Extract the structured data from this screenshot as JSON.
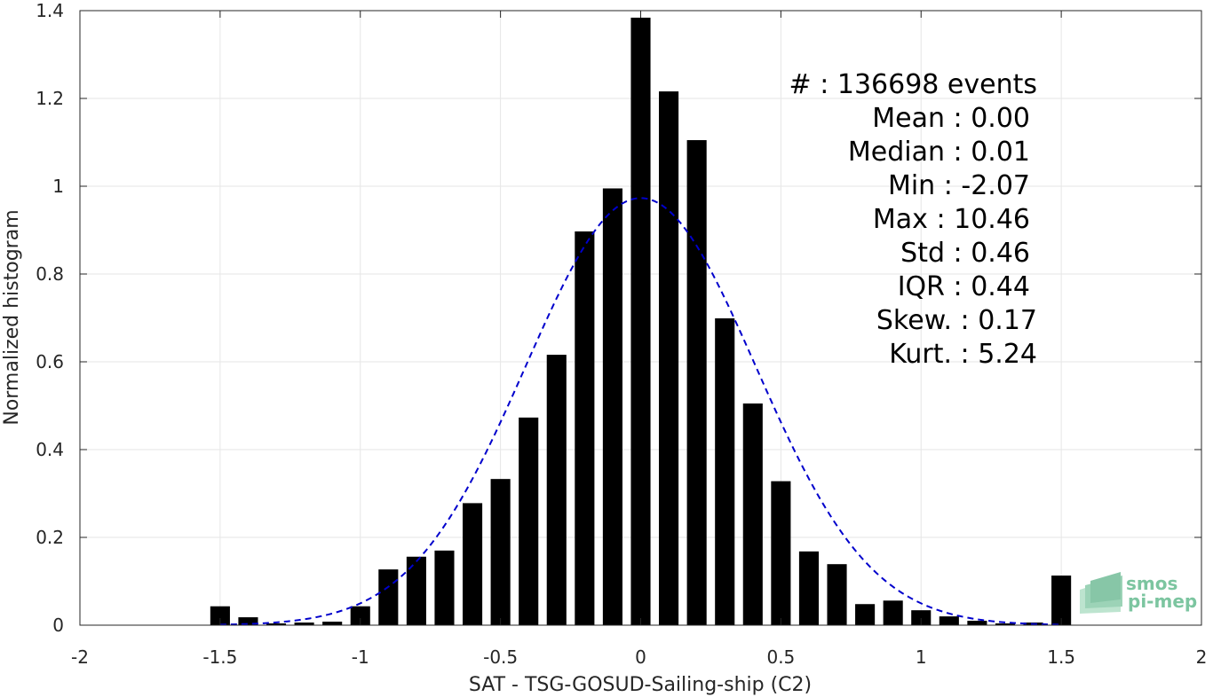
{
  "chart_data": {
    "type": "bar",
    "xlabel": "SAT - TSG-GOSUD-Sailing-ship (C2)",
    "ylabel": "Normalized histogram",
    "xlim": [
      -2,
      2
    ],
    "ylim": [
      0,
      1.4
    ],
    "grid": true,
    "bar_width": 0.07,
    "bar_color": "#000000",
    "x_ticks": [
      -2,
      -1.5,
      -1,
      -0.5,
      0,
      0.5,
      1,
      1.5,
      2
    ],
    "x_tick_labels": [
      "-2",
      "-1.5",
      "-1",
      "-0.5",
      "0",
      "0.5",
      "1",
      "1.5",
      "2"
    ],
    "y_ticks": [
      0,
      0.2,
      0.4,
      0.6,
      0.8,
      1,
      1.2,
      1.4
    ],
    "y_tick_labels": [
      "0",
      "0.2",
      "0.4",
      "0.6",
      "0.8",
      "1",
      "1.2",
      "1.4"
    ],
    "bars": {
      "x": [
        -1.5,
        -1.4,
        -1.3,
        -1.2,
        -1.1,
        -1.0,
        -0.9,
        -0.8,
        -0.7,
        -0.6,
        -0.5,
        -0.4,
        -0.3,
        -0.2,
        -0.1,
        0.0,
        0.1,
        0.2,
        0.3,
        0.4,
        0.5,
        0.6,
        0.7,
        0.8,
        0.9,
        1.0,
        1.1,
        1.2,
        1.3,
        1.4,
        1.5
      ],
      "values": [
        0.043,
        0.018,
        0.004,
        0.006,
        0.008,
        0.043,
        0.127,
        0.156,
        0.17,
        0.278,
        0.333,
        0.473,
        0.616,
        0.897,
        0.995,
        1.384,
        1.216,
        1.105,
        0.699,
        0.505,
        0.328,
        0.168,
        0.139,
        0.048,
        0.056,
        0.034,
        0.02,
        0.01,
        0.004,
        0.006,
        0.113
      ]
    },
    "fit": {
      "type": "normal",
      "mean": 0.0,
      "std": 0.41,
      "peak": 0.973,
      "x_range": [
        -1.5,
        1.5
      ],
      "color": "#0000cc",
      "style": "dashed"
    },
    "stats_lines": [
      "#  : 136698 events",
      "Mean : 0.00",
      "Median : 0.01",
      "Min : -2.07",
      "Max : 10.46",
      "Std : 0.46",
      "IQR : 0.44",
      "Skew. : 0.17",
      "Kurt. : 5.24"
    ]
  },
  "logo": {
    "line1": "smos",
    "line2": "pi-mep",
    "color": "#7cc5a0"
  }
}
